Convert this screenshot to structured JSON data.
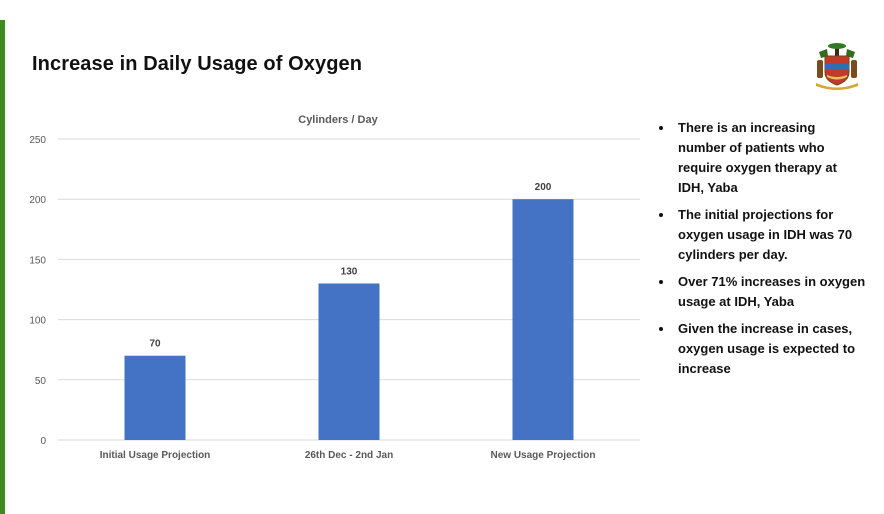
{
  "slide": {
    "title": "Increase in Daily Usage of Oxygen",
    "bullets": [
      "There is an increasing number of patients who require oxygen therapy at IDH, Yaba",
      "The initial projections for oxygen usage in IDH was 70 cylinders per day.",
      "Over 71% increases in oxygen usage at IDH, Yaba",
      "Given the increase in cases, oxygen usage is expected to increase"
    ]
  },
  "logo": {
    "icon": "lagos-state-crest-icon"
  },
  "colors": {
    "bar": "#4472c4",
    "accent": "#3f8b1f",
    "grid": "#d9d9d9"
  },
  "chart_data": {
    "type": "bar",
    "title": "Cylinders / Day",
    "categories": [
      "Initial Usage Projection",
      "26th Dec - 2nd Jan",
      "New Usage Projection"
    ],
    "values": [
      70,
      130,
      200
    ],
    "data_labels": [
      "70",
      "130",
      "200"
    ],
    "ylim": [
      0,
      250
    ],
    "yticks": [
      0,
      50,
      100,
      150,
      200,
      250
    ],
    "ytick_labels": [
      "0",
      "50",
      "100",
      "150",
      "200",
      "250"
    ],
    "xlabel": "",
    "ylabel": "",
    "grid": true,
    "legend": "none"
  }
}
